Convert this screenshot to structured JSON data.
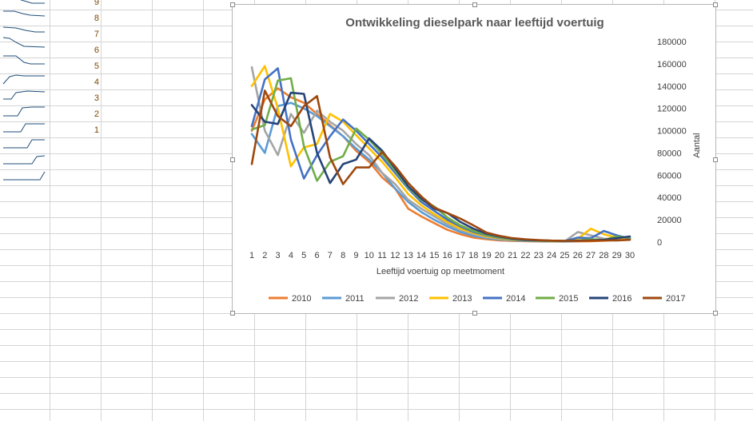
{
  "sheet": {
    "row_numbers": [
      "9",
      "8",
      "7",
      "6",
      "5",
      "4",
      "3",
      "2",
      "1"
    ],
    "sparkline_color": "#1f4e79",
    "grid_color": "#d4d4d4"
  },
  "chart_data": {
    "type": "line",
    "title": "Ontwikkeling dieselpark naar leeftijd voertuig",
    "xlabel": "Leeftijd voertuig op meetmoment",
    "ylabel": "Aantal",
    "y_axis_side": "right",
    "ylim": [
      0,
      180000
    ],
    "yticks": [
      "180000",
      "160000",
      "140000",
      "120000",
      "100000",
      "80000",
      "60000",
      "40000",
      "20000",
      "0"
    ],
    "yticks_values": [
      180000,
      160000,
      140000,
      120000,
      100000,
      80000,
      60000,
      40000,
      20000,
      0
    ],
    "categories": [
      "1",
      "2",
      "3",
      "4",
      "5",
      "6",
      "7",
      "8",
      "9",
      "10",
      "11",
      "12",
      "13",
      "14",
      "15",
      "16",
      "17",
      "18",
      "19",
      "20",
      "21",
      "22",
      "23",
      "24",
      "25",
      "26",
      "27",
      "28",
      "29",
      "30"
    ],
    "legend_position": "bottom",
    "grid": false,
    "series": [
      {
        "name": "2010",
        "color": "#ed7d31",
        "values": [
          100000,
          128000,
          138000,
          130000,
          125000,
          115000,
          105000,
          95000,
          82000,
          72000,
          58000,
          48000,
          30000,
          23000,
          17000,
          11000,
          7000,
          4000,
          2500,
          1500,
          1000,
          800,
          600,
          500,
          500,
          600,
          800,
          1200,
          2000,
          3000
        ]
      },
      {
        "name": "2011",
        "color": "#5b9bd5",
        "values": [
          97000,
          80000,
          122000,
          125000,
          120000,
          113000,
          104000,
          95000,
          84000,
          74000,
          62000,
          48000,
          36000,
          27000,
          20000,
          14000,
          9000,
          5500,
          3500,
          2200,
          1500,
          1000,
          800,
          600,
          500,
          1000,
          1500,
          2000,
          3000,
          3500
        ]
      },
      {
        "name": "2012",
        "color": "#a5a5a5",
        "values": [
          157000,
          100000,
          78000,
          115000,
          98000,
          118000,
          108000,
          100000,
          88000,
          78000,
          62000,
          52000,
          38000,
          30000,
          23000,
          16000,
          11000,
          7000,
          4500,
          2800,
          1800,
          1200,
          900,
          700,
          600,
          9000,
          6000,
          3000,
          2500,
          2000
        ]
      },
      {
        "name": "2013",
        "color": "#ffc000",
        "values": [
          140000,
          158000,
          120000,
          68000,
          85000,
          88000,
          115000,
          108000,
          96000,
          84000,
          72000,
          58000,
          43000,
          33000,
          25000,
          18000,
          12000,
          8000,
          5000,
          3200,
          2000,
          1400,
          1000,
          800,
          700,
          3000,
          12000,
          7000,
          4000,
          2500
        ]
      },
      {
        "name": "2014",
        "color": "#4472c4",
        "values": [
          104000,
          146000,
          156000,
          92000,
          57000,
          78000,
          95000,
          110000,
          100000,
          88000,
          76000,
          62000,
          48000,
          36000,
          28000,
          20000,
          14000,
          9000,
          6000,
          3800,
          2400,
          1600,
          1200,
          900,
          800,
          4000,
          3500,
          10000,
          6000,
          3000
        ]
      },
      {
        "name": "2015",
        "color": "#70ad47",
        "values": [
          101000,
          105000,
          145000,
          147000,
          86000,
          55000,
          72000,
          77000,
          102000,
          92000,
          79000,
          64000,
          49000,
          38000,
          32000,
          22000,
          15000,
          10000,
          6500,
          4200,
          2600,
          1800,
          1300,
          1000,
          900,
          1500,
          2500,
          2000,
          5000,
          4000
        ]
      },
      {
        "name": "2016",
        "color": "#264478",
        "values": [
          123000,
          108000,
          106000,
          134000,
          133000,
          80000,
          53000,
          70000,
          74000,
          93000,
          82000,
          66000,
          50000,
          39000,
          30000,
          26000,
          18000,
          12000,
          7500,
          5000,
          3000,
          2000,
          1500,
          1200,
          1000,
          1200,
          1500,
          2000,
          3500,
          5000
        ]
      },
      {
        "name": "2017",
        "color": "#9e480e",
        "values": [
          70000,
          136000,
          113000,
          104000,
          122000,
          131000,
          76000,
          52000,
          67000,
          67000,
          81000,
          68000,
          53000,
          41000,
          31000,
          26000,
          21000,
          15000,
          8500,
          5500,
          3500,
          2500,
          1800,
          1300,
          1100,
          1100,
          1200,
          1400,
          1500,
          2000
        ]
      }
    ]
  }
}
